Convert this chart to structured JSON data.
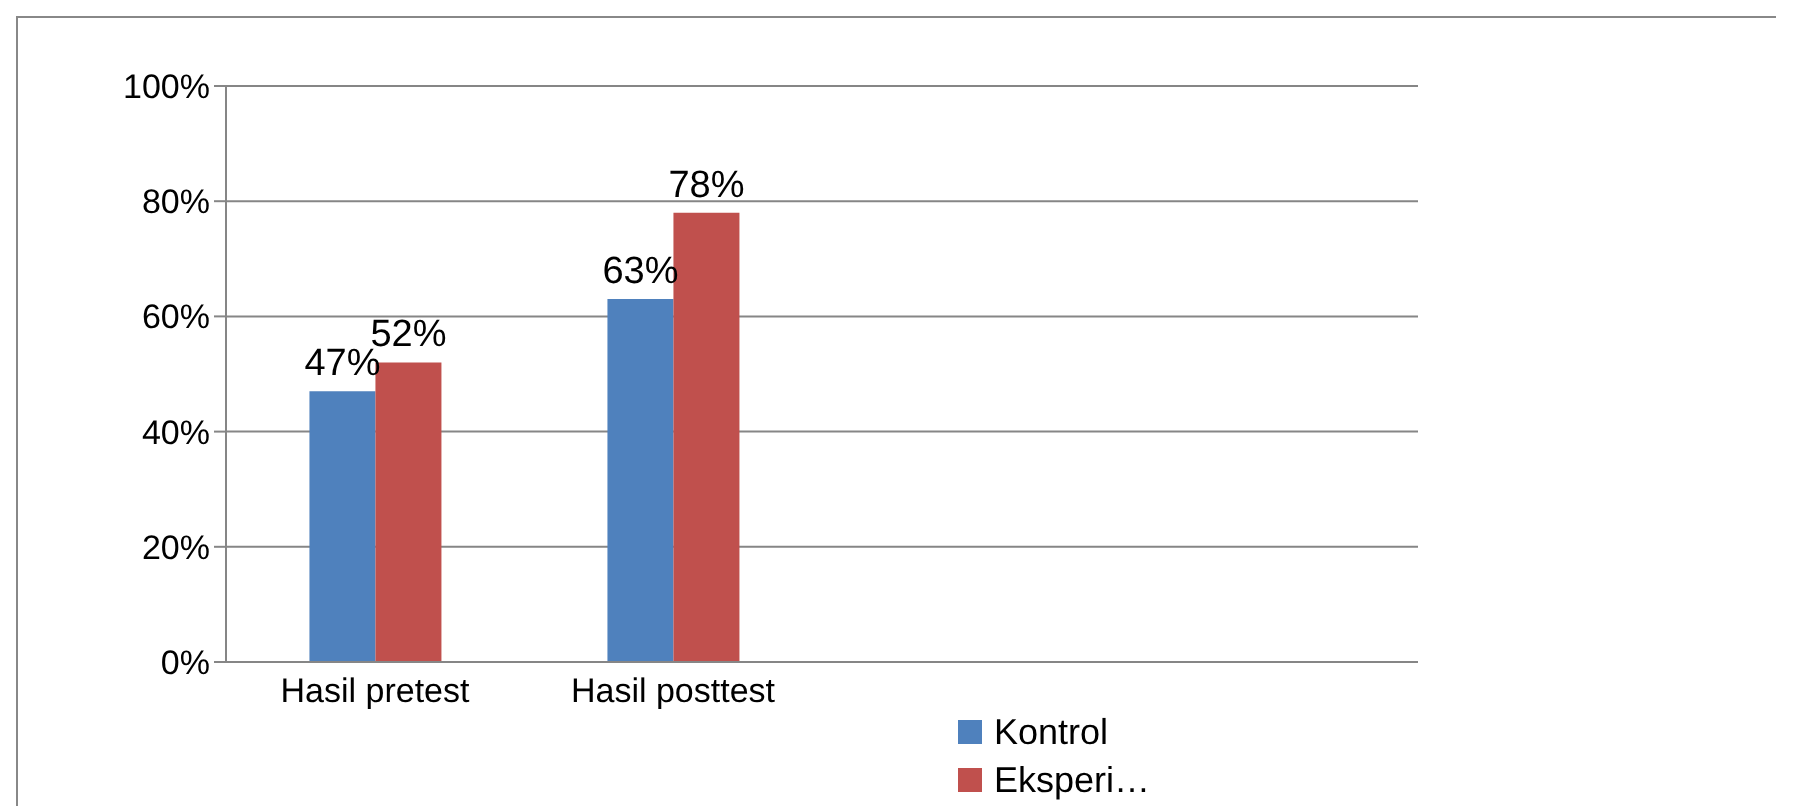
{
  "chart_data": {
    "type": "bar",
    "categories": [
      "Hasil pretest",
      "Hasil posttest",
      null,
      null
    ],
    "series": [
      {
        "name": "Kontrol",
        "color": "#4f81bd",
        "values": [
          47,
          63,
          null,
          null
        ],
        "value_labels": [
          "47%",
          "63%",
          null,
          null
        ]
      },
      {
        "name": "Eksperi…",
        "color": "#c0504d",
        "values": [
          52,
          78,
          null,
          null
        ],
        "value_labels": [
          "52%",
          "78%",
          null,
          null
        ]
      }
    ],
    "ylim": [
      0,
      100
    ],
    "yticks": [
      {
        "value": 0,
        "label": "0%"
      },
      {
        "value": 20,
        "label": "20%"
      },
      {
        "value": 40,
        "label": "40%"
      },
      {
        "value": 60,
        "label": "60%"
      },
      {
        "value": 80,
        "label": "80%"
      },
      {
        "value": 100,
        "label": "100%"
      }
    ],
    "grid": "y",
    "legend": "bottom"
  }
}
